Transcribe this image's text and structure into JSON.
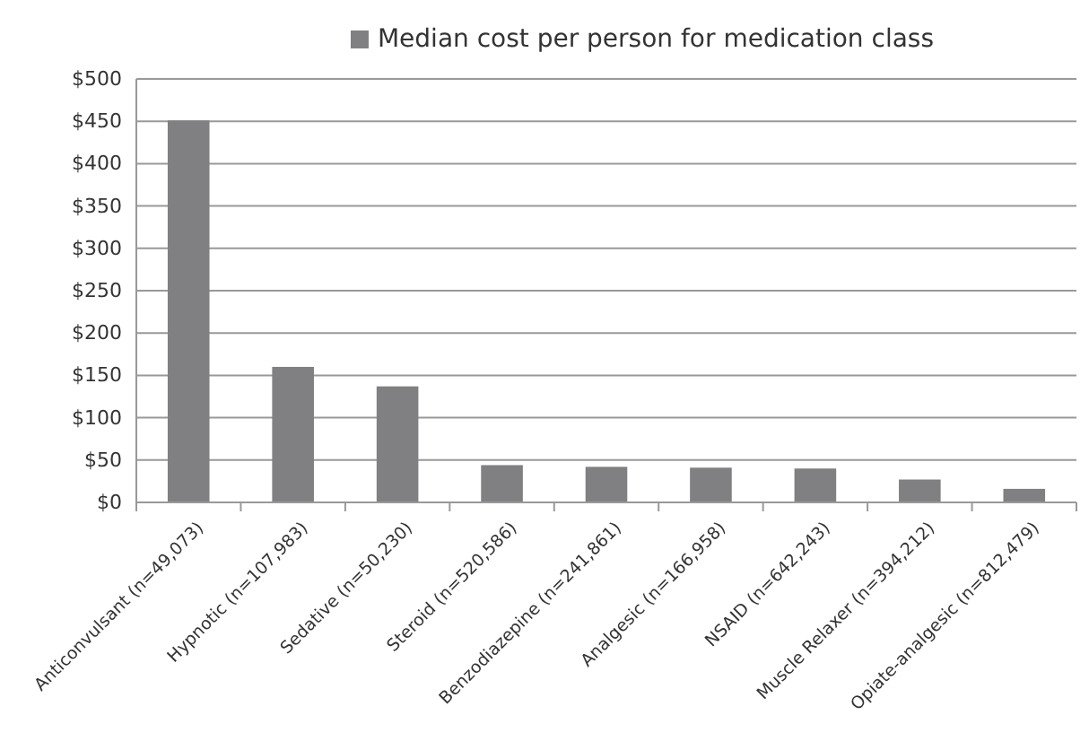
{
  "chart_data": {
    "type": "bar",
    "categories": [
      "Anticonvulsant (n=49,073)",
      "Hypnotic (n=107,983)",
      "Sedative (n=50,230)",
      "Steroid (n=520,586)",
      "Benzodiazepine (n=241,861)",
      "Analgesic (n=166,958)",
      "NSAID (n=642,243)",
      "Muscle Relaxer (n=394,212)",
      "Opiate-analgesic (n=812,479)"
    ],
    "series": [
      {
        "name": "Median cost per person for medication class",
        "color": "#808083",
        "values": [
          451,
          160,
          137,
          44,
          42,
          41,
          40,
          27,
          16
        ]
      }
    ],
    "ylim": [
      0,
      500
    ],
    "yticks": [
      {
        "value": 0,
        "label": "$0"
      },
      {
        "value": 50,
        "label": "$50"
      },
      {
        "value": 100,
        "label": "$100"
      },
      {
        "value": 150,
        "label": "$150"
      },
      {
        "value": 200,
        "label": "$200"
      },
      {
        "value": 250,
        "label": "$250"
      },
      {
        "value": 300,
        "label": "$300"
      },
      {
        "value": 350,
        "label": "$350"
      },
      {
        "value": 400,
        "label": "$400"
      },
      {
        "value": 450,
        "label": "$450"
      },
      {
        "value": 500,
        "label": "$500"
      }
    ],
    "grid": "y",
    "legend": "top"
  }
}
